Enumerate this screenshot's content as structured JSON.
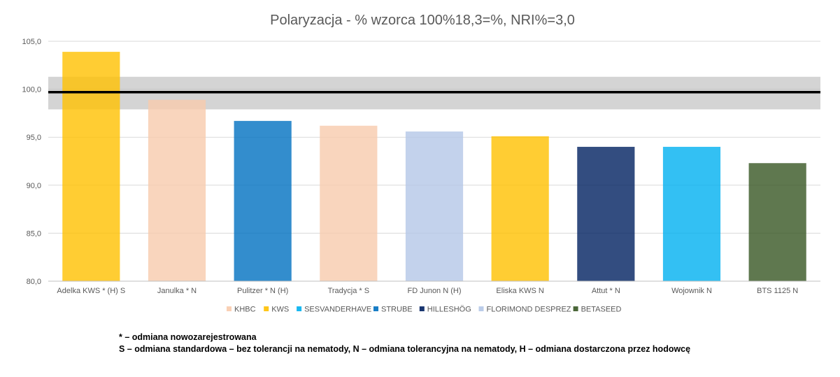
{
  "chart_data": {
    "type": "bar",
    "title": "Polaryzacja - % wzorca 100%18,3=%, NRI%=3,0",
    "categories": [
      "Adelka KWS * (H) S",
      "Janulka * N",
      "Pulitzer * N (H)",
      "Tradycja * S",
      "FD Junon N (H)",
      "Eliska KWS N",
      "Attut * N",
      "Wojownik N",
      "BTS 1125 N"
    ],
    "values": [
      103.9,
      98.9,
      96.7,
      96.2,
      95.6,
      95.1,
      94.0,
      94.0,
      92.3
    ],
    "breeders": [
      "KWS",
      "KHBC",
      "STRUBE",
      "KHBC",
      "FLORIMOND DESPREZ",
      "KWS",
      "HILLESHÖG",
      "SESVANDERHAVE",
      "BETASEED"
    ],
    "ylim": [
      80,
      105
    ],
    "yticks": [
      "80,0",
      "85,0",
      "90,0",
      "95,0",
      "100,0",
      "105,0"
    ],
    "ytick_values": [
      80,
      85,
      90,
      95,
      100,
      105
    ],
    "reference_line": 99.7,
    "nri_band": [
      97.9,
      101.3
    ],
    "grid": true,
    "legend_position": "bottom",
    "legend": [
      {
        "name": "KHBC",
        "color": "#F8CBAD"
      },
      {
        "name": "KWS",
        "color": "#FFC000"
      },
      {
        "name": "SESVANDERHAVE",
        "color": "#00B0F0"
      },
      {
        "name": "STRUBE",
        "color": "#0070C0"
      },
      {
        "name": "HILLESHÖG",
        "color": "#002060"
      },
      {
        "name": "FLORIMOND DESPREZ",
        "color": "#B4C7E7"
      },
      {
        "name": "BETASEED",
        "color": "#375623"
      }
    ]
  },
  "notes": {
    "line1": "* – odmiana nowozarejestrowana",
    "line2": "S – odmiana standardowa – bez tolerancji na nematody, N – odmiana tolerancyjna na nematody, H – odmiana dostarczona przez hodowcę"
  }
}
